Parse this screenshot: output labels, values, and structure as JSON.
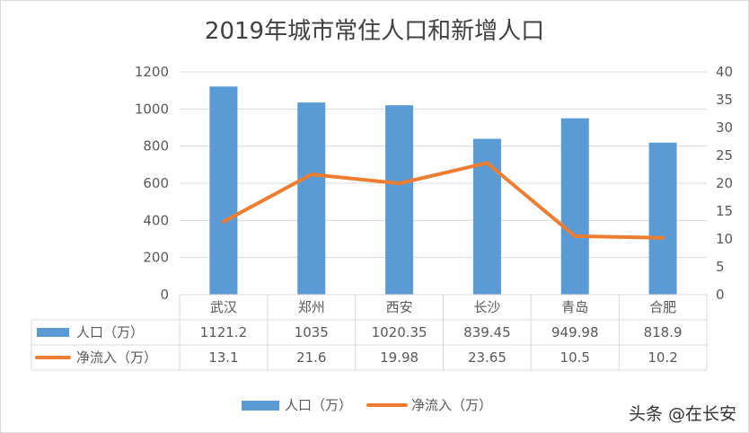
{
  "chart_data": {
    "type": "bar",
    "title": "2019年城市常住人口和新增人口",
    "categories": [
      "武汉",
      "郑州",
      "西安",
      "长沙",
      "青岛",
      "合肥"
    ],
    "series": [
      {
        "name": "人口（万）",
        "type": "bar",
        "axis": "left",
        "color": "#5B9BD5",
        "values": [
          1121.2,
          1035,
          1020.35,
          839.45,
          949.98,
          818.9
        ],
        "labels": [
          "1121.2",
          "1035",
          "1020.35",
          "839.45",
          "949.98",
          "818.9"
        ]
      },
      {
        "name": "净流入（万）",
        "type": "line",
        "axis": "right",
        "color": "#ED7D31",
        "values": [
          13.1,
          21.6,
          19.98,
          23.65,
          10.5,
          10.2
        ],
        "labels": [
          "13.1",
          "21.6",
          "19.98",
          "23.65",
          "10.5",
          "10.2"
        ]
      }
    ],
    "y_left": {
      "min": 0,
      "max": 1200,
      "step": 200,
      "ticks": [
        "0",
        "200",
        "400",
        "600",
        "800",
        "1000",
        "1200"
      ]
    },
    "y_right": {
      "min": 0,
      "max": 40,
      "step": 5,
      "ticks": [
        "0",
        "5",
        "10",
        "15",
        "20",
        "25",
        "30",
        "35",
        "40"
      ]
    },
    "grid": true,
    "legend_position": "bottom",
    "data_table": true
  },
  "watermark": "头条 @在长安"
}
